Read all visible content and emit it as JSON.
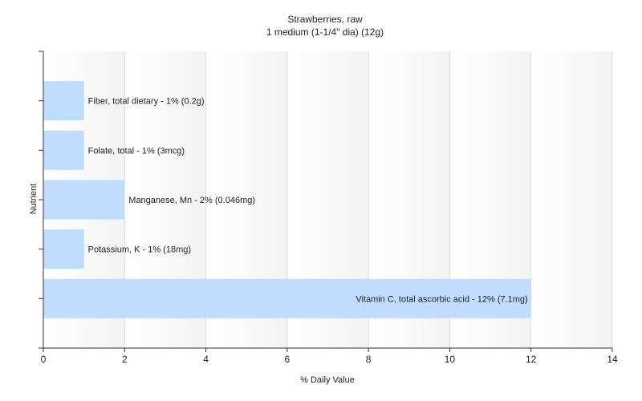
{
  "chart_data": {
    "type": "bar",
    "orientation": "horizontal",
    "title": "Strawberries, raw",
    "subtitle": "1 medium (1-1/4\" dia) (12g)",
    "xlabel": "% Daily Value",
    "ylabel": "Nutrient",
    "xlim": [
      0,
      14
    ],
    "xticks": [
      "0",
      "2",
      "4",
      "6",
      "8",
      "10",
      "12",
      "14"
    ],
    "grid": true,
    "categories": [
      "Fiber, total dietary",
      "Folate, total",
      "Manganese, Mn",
      "Potassium, K",
      "Vitamin C, total ascorbic acid"
    ],
    "values": [
      1,
      1,
      2,
      1,
      12
    ],
    "labels": [
      "Fiber, total dietary - 1% (0.2g)",
      "Folate, total - 1% (3mcg)",
      "Manganese, Mn - 2% (0.046mg)",
      "Potassium, K - 1% (18mg)",
      "Vitamin C, total ascorbic acid - 12% (7.1mg)"
    ],
    "bar_color": "#c0dcff"
  }
}
